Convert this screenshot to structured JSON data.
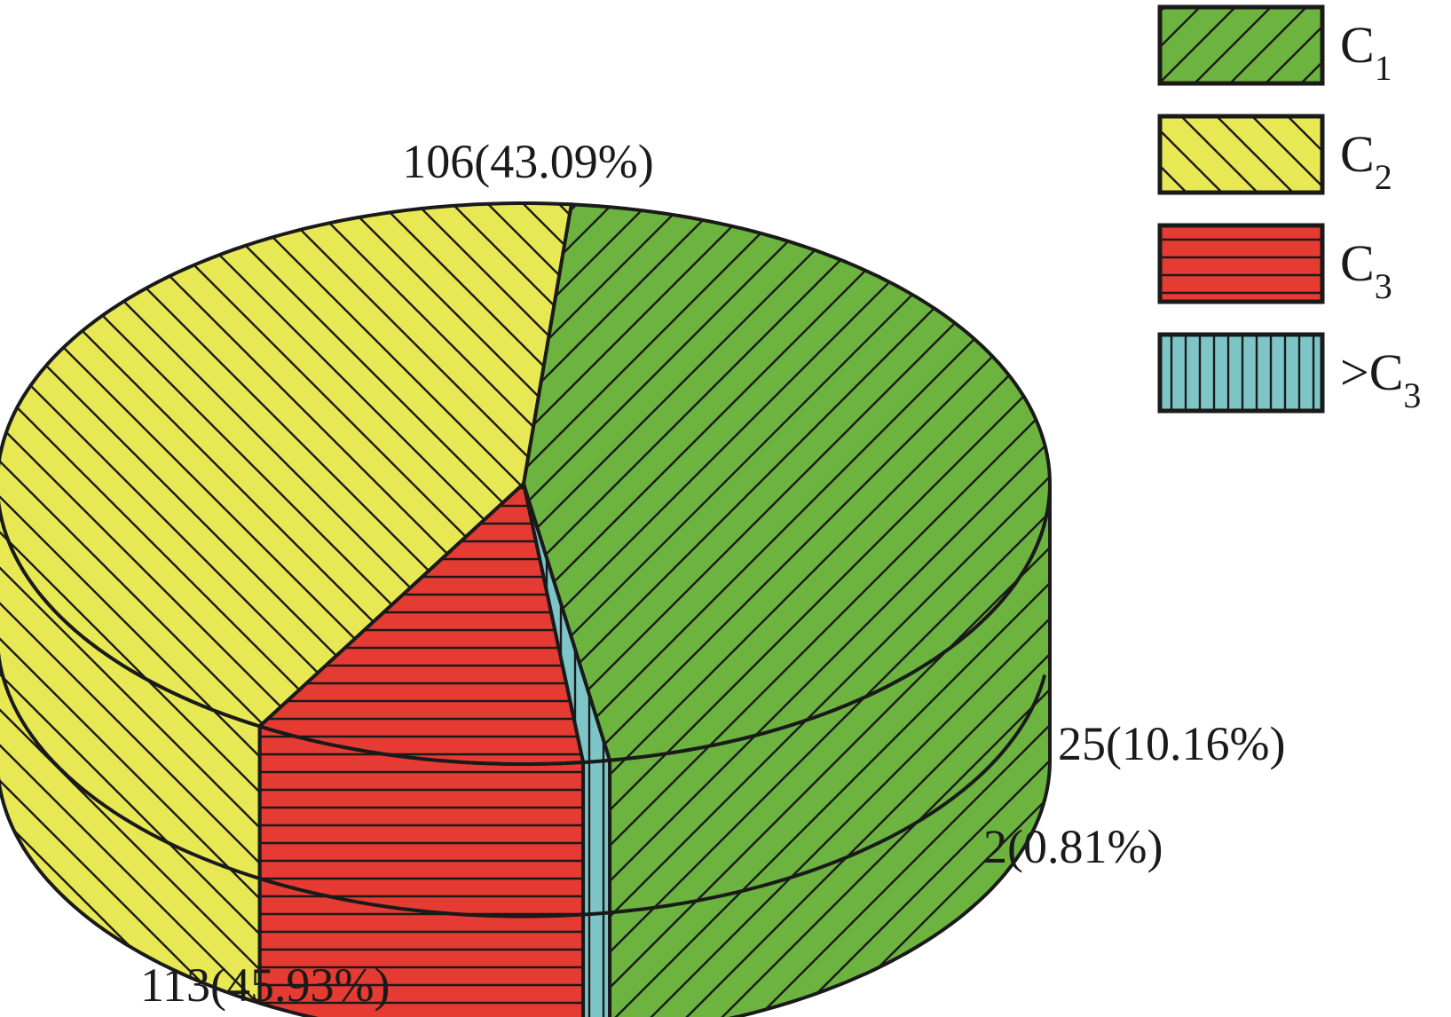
{
  "chart_data": {
    "type": "pie",
    "style": "3d",
    "slices": [
      {
        "key": "c1",
        "name": "C",
        "sub": "1",
        "prefix": "",
        "value": 113,
        "percent": 45.93,
        "label": "113(45.93%)",
        "color": "#6db33f",
        "pattern": "diagonal-forward"
      },
      {
        "key": "c2",
        "name": "C",
        "sub": "2",
        "prefix": "",
        "value": 106,
        "percent": 43.09,
        "label": "106(43.09%)",
        "color": "#e8e855",
        "pattern": "diagonal-backward"
      },
      {
        "key": "c3",
        "name": "C",
        "sub": "3",
        "prefix": "",
        "value": 25,
        "percent": 10.16,
        "label": "25(10.16%)",
        "color": "#e53b32",
        "pattern": "horizontal"
      },
      {
        "key": "gt_c3",
        "name": "C",
        "sub": "3",
        "prefix": ">",
        "value": 2,
        "percent": 0.81,
        "label": "2(0.81%)",
        "color": "#7ec5c8",
        "pattern": "vertical"
      }
    ],
    "legend_position": "top-right",
    "outline_color": "#1a1a1a"
  }
}
